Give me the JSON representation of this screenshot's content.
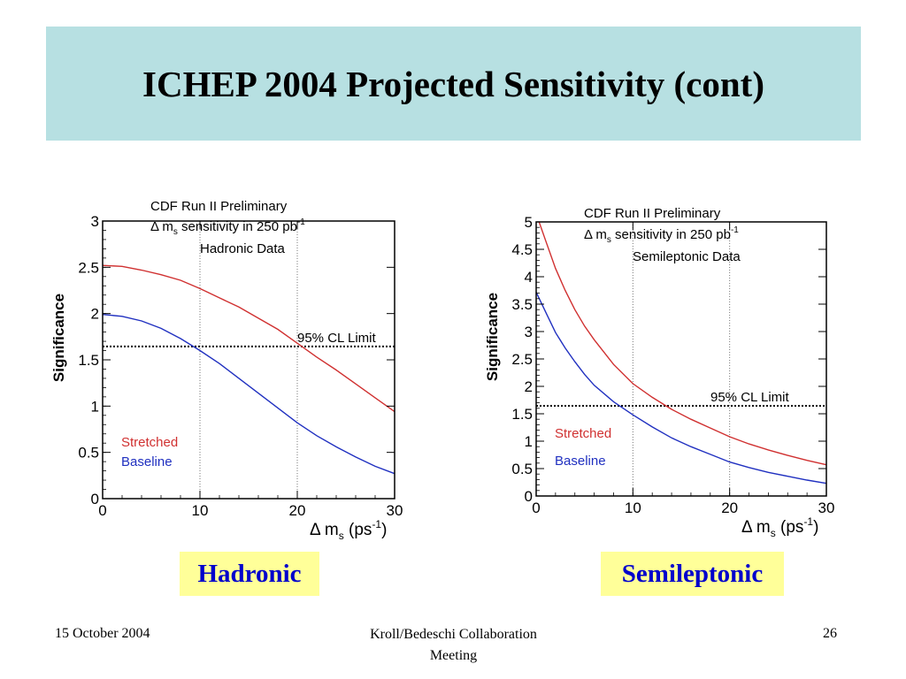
{
  "slide": {
    "title": "ICHEP 2004 Projected Sensitivity (cont)",
    "footer": {
      "date": "15 October 2004",
      "center_line1": "Kroll/Bedeschi Collaboration",
      "center_line2": "Meeting",
      "page": "26"
    }
  },
  "chart_data": [
    {
      "type": "line",
      "caption": "Hadronic",
      "header": [
        "CDF Run II Preliminary",
        "Δ m",
        "s",
        " sensitivity in 250 pb",
        "-1",
        "Hadronic Data"
      ],
      "ylabel": "Significance",
      "xlabel": "Δ m",
      "xlabel_sub": "s",
      "xlabel_unit": " (ps",
      "xlabel_sup": "-1",
      "xlabel_close": ")",
      "xlim": [
        0,
        30
      ],
      "ylim": [
        0,
        3
      ],
      "xticks": [
        0,
        10,
        20,
        30
      ],
      "yticks": [
        0,
        0.5,
        1,
        1.5,
        2,
        2.5,
        3
      ],
      "ytick_labels": [
        "0",
        "0.5",
        "1",
        "1.5",
        "2",
        "2.5",
        "3"
      ],
      "vlines": [
        10,
        20
      ],
      "cl_limit": {
        "value": 1.645,
        "label": "95% CL Limit"
      },
      "series": [
        {
          "name": "Stretched",
          "color": "#d03030",
          "x": [
            0,
            2,
            4,
            6,
            8,
            10,
            12,
            14,
            16,
            18,
            20,
            22,
            24,
            26,
            28,
            30
          ],
          "y": [
            2.52,
            2.51,
            2.47,
            2.42,
            2.36,
            2.27,
            2.17,
            2.07,
            1.95,
            1.83,
            1.68,
            1.53,
            1.39,
            1.24,
            1.09,
            0.94
          ]
        },
        {
          "name": "Baseline",
          "color": "#2030c0",
          "x": [
            0,
            2,
            4,
            6,
            8,
            10,
            12,
            14,
            16,
            18,
            20,
            22,
            24,
            26,
            28,
            30
          ],
          "y": [
            1.99,
            1.97,
            1.92,
            1.84,
            1.73,
            1.6,
            1.46,
            1.3,
            1.14,
            0.98,
            0.82,
            0.68,
            0.56,
            0.45,
            0.35,
            0.27
          ]
        }
      ]
    },
    {
      "type": "line",
      "caption": "Semileptonic",
      "header": [
        "CDF Run II Preliminary",
        "Δ m",
        "s",
        " sensitivity in 250 pb",
        "-1",
        "Semileptonic Data"
      ],
      "ylabel": "Significance",
      "xlabel": "Δ m",
      "xlabel_sub": "s",
      "xlabel_unit": " (ps",
      "xlabel_sup": "-1",
      "xlabel_close": ")",
      "xlim": [
        0,
        30
      ],
      "ylim": [
        0,
        5
      ],
      "xticks": [
        0,
        10,
        20,
        30
      ],
      "yticks": [
        0,
        0.5,
        1,
        1.5,
        2,
        2.5,
        3,
        3.5,
        4,
        4.5,
        5
      ],
      "ytick_labels": [
        "0",
        "0.5",
        "1",
        "1.5",
        "2",
        "2.5",
        "3",
        "3.5",
        "4",
        "4.5",
        "5"
      ],
      "vlines": [
        10,
        20
      ],
      "cl_limit": {
        "value": 1.645,
        "label": "95% CL Limit"
      },
      "series": [
        {
          "name": "Stretched",
          "color": "#d03030",
          "x": [
            0.3,
            1,
            2,
            3,
            4,
            5,
            6,
            8,
            10,
            12,
            14,
            16,
            18,
            20,
            22,
            24,
            26,
            28,
            30
          ],
          "y": [
            5.0,
            4.65,
            4.15,
            3.75,
            3.4,
            3.1,
            2.85,
            2.4,
            2.05,
            1.8,
            1.58,
            1.4,
            1.24,
            1.08,
            0.95,
            0.84,
            0.74,
            0.65,
            0.57
          ]
        },
        {
          "name": "Baseline",
          "color": "#2030c0",
          "x": [
            0,
            1,
            2,
            3,
            4,
            5,
            6,
            8,
            10,
            12,
            14,
            16,
            18,
            20,
            22,
            24,
            26,
            28,
            30
          ],
          "y": [
            3.72,
            3.35,
            2.98,
            2.7,
            2.45,
            2.22,
            2.02,
            1.72,
            1.48,
            1.26,
            1.06,
            0.9,
            0.76,
            0.62,
            0.52,
            0.43,
            0.36,
            0.29,
            0.23
          ]
        }
      ]
    }
  ]
}
